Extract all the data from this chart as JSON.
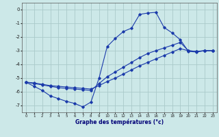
{
  "title": "Graphe des températures (°c)",
  "background_color": "#cce8e8",
  "grid_color": "#aacaca",
  "line_color": "#1a3aaa",
  "xlim": [
    -0.5,
    23.5
  ],
  "ylim": [
    -7.5,
    0.5
  ],
  "xticks": [
    0,
    1,
    2,
    3,
    4,
    5,
    6,
    7,
    8,
    9,
    10,
    11,
    12,
    13,
    14,
    15,
    16,
    17,
    18,
    19,
    20,
    21,
    22,
    23
  ],
  "yticks": [
    0,
    -1,
    -2,
    -3,
    -4,
    -5,
    -6,
    -7
  ],
  "line1_x": [
    0,
    1,
    2,
    3,
    4,
    5,
    6,
    7,
    8,
    9,
    10,
    11,
    12,
    13,
    14,
    15,
    16,
    17,
    18,
    19,
    20,
    21,
    22,
    23
  ],
  "line1_y": [
    -5.3,
    -5.6,
    -5.9,
    -6.3,
    -6.5,
    -6.7,
    -6.85,
    -7.1,
    -6.75,
    -5.0,
    -2.7,
    -2.1,
    -1.6,
    -1.35,
    -0.35,
    -0.25,
    -0.2,
    -1.3,
    -1.7,
    -2.2,
    -3.05,
    -3.1,
    -3.0,
    -3.0
  ],
  "line2_x": [
    0,
    1,
    2,
    3,
    4,
    5,
    6,
    7,
    8,
    9,
    10,
    11,
    12,
    13,
    14,
    15,
    16,
    17,
    18,
    19,
    20,
    21,
    22,
    23
  ],
  "line2_y": [
    -5.3,
    -5.4,
    -5.5,
    -5.6,
    -5.7,
    -5.75,
    -5.8,
    -5.85,
    -5.9,
    -5.4,
    -4.9,
    -4.55,
    -4.2,
    -3.85,
    -3.5,
    -3.2,
    -3.0,
    -2.8,
    -2.6,
    -2.4,
    -3.0,
    -3.05,
    -3.0,
    -3.0
  ],
  "line3_x": [
    0,
    1,
    2,
    3,
    4,
    5,
    6,
    7,
    8,
    9,
    10,
    11,
    12,
    13,
    14,
    15,
    16,
    17,
    18,
    19,
    20,
    21,
    22,
    23
  ],
  "line3_y": [
    -5.3,
    -5.35,
    -5.45,
    -5.55,
    -5.6,
    -5.65,
    -5.7,
    -5.75,
    -5.8,
    -5.55,
    -5.25,
    -5.0,
    -4.7,
    -4.4,
    -4.1,
    -3.85,
    -3.6,
    -3.35,
    -3.1,
    -2.85,
    -3.0,
    -3.05,
    -3.0,
    -3.0
  ]
}
